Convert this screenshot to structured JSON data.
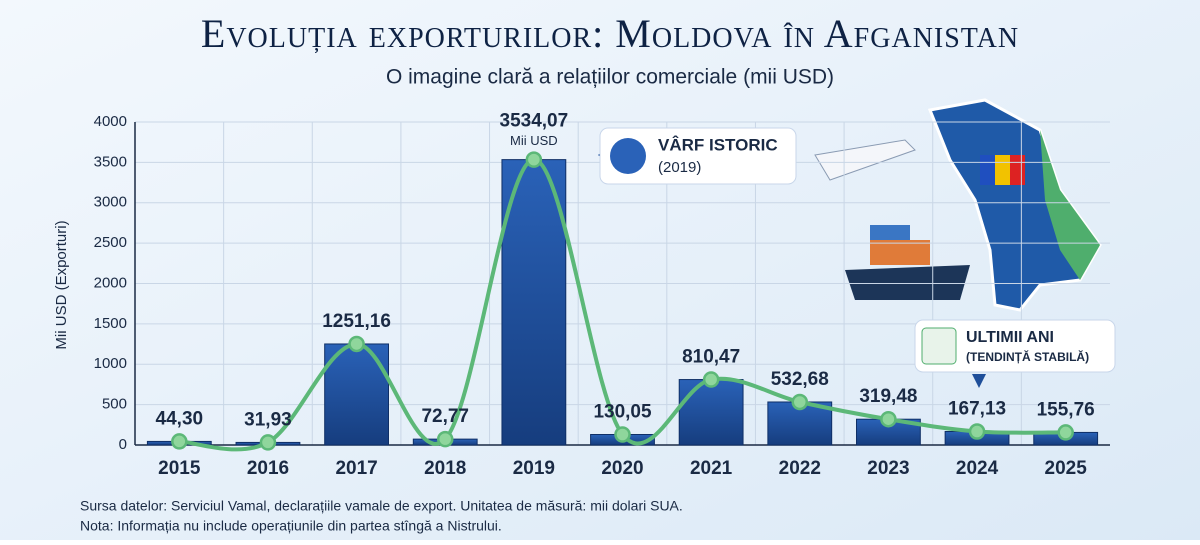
{
  "chart_data": {
    "type": "bar",
    "title": "Evoluția exporturilor: Moldova în Afganistan",
    "subtitle": "O imagine clară a relațiilor comerciale (mii USD)",
    "y_label": "Mii USD (Exporturi)",
    "categories": [
      "2015",
      "2016",
      "2017",
      "2018",
      "2019",
      "2020",
      "2021",
      "2022",
      "2023",
      "2024",
      "2025"
    ],
    "values": [
      44.3,
      31.93,
      1251.16,
      72.77,
      3534.07,
      130.05,
      810.47,
      532.68,
      319.48,
      167.13,
      155.76
    ],
    "value_labels": [
      "44,30",
      "31,93",
      "1251,16",
      "72,77",
      "3534,07",
      "130,05",
      "810,47",
      "532,68",
      "319,48",
      "167,13",
      "155,76"
    ],
    "color": "#1f4f9a",
    "line_color": "#5cb878",
    "ylim": [
      0,
      4000
    ],
    "yticks": [
      0,
      500,
      1000,
      1500,
      2000,
      2500,
      3000,
      3500,
      4000
    ],
    "grid": true,
    "annotations": [
      "Mii USD",
      "VÂRF ISTORIC",
      "(2019)",
      "ULTIMII ANI",
      "(TENDINȚĂ STABILĂ)"
    ],
    "notes": [
      "Sursa datelor: Serviciul Vamal, declarațiile vamale de export. Unitatea de măsură: mii dolari SUA.",
      "Nota: Informația nu include operațiunile din partea stîngă a Nistrului."
    ]
  }
}
